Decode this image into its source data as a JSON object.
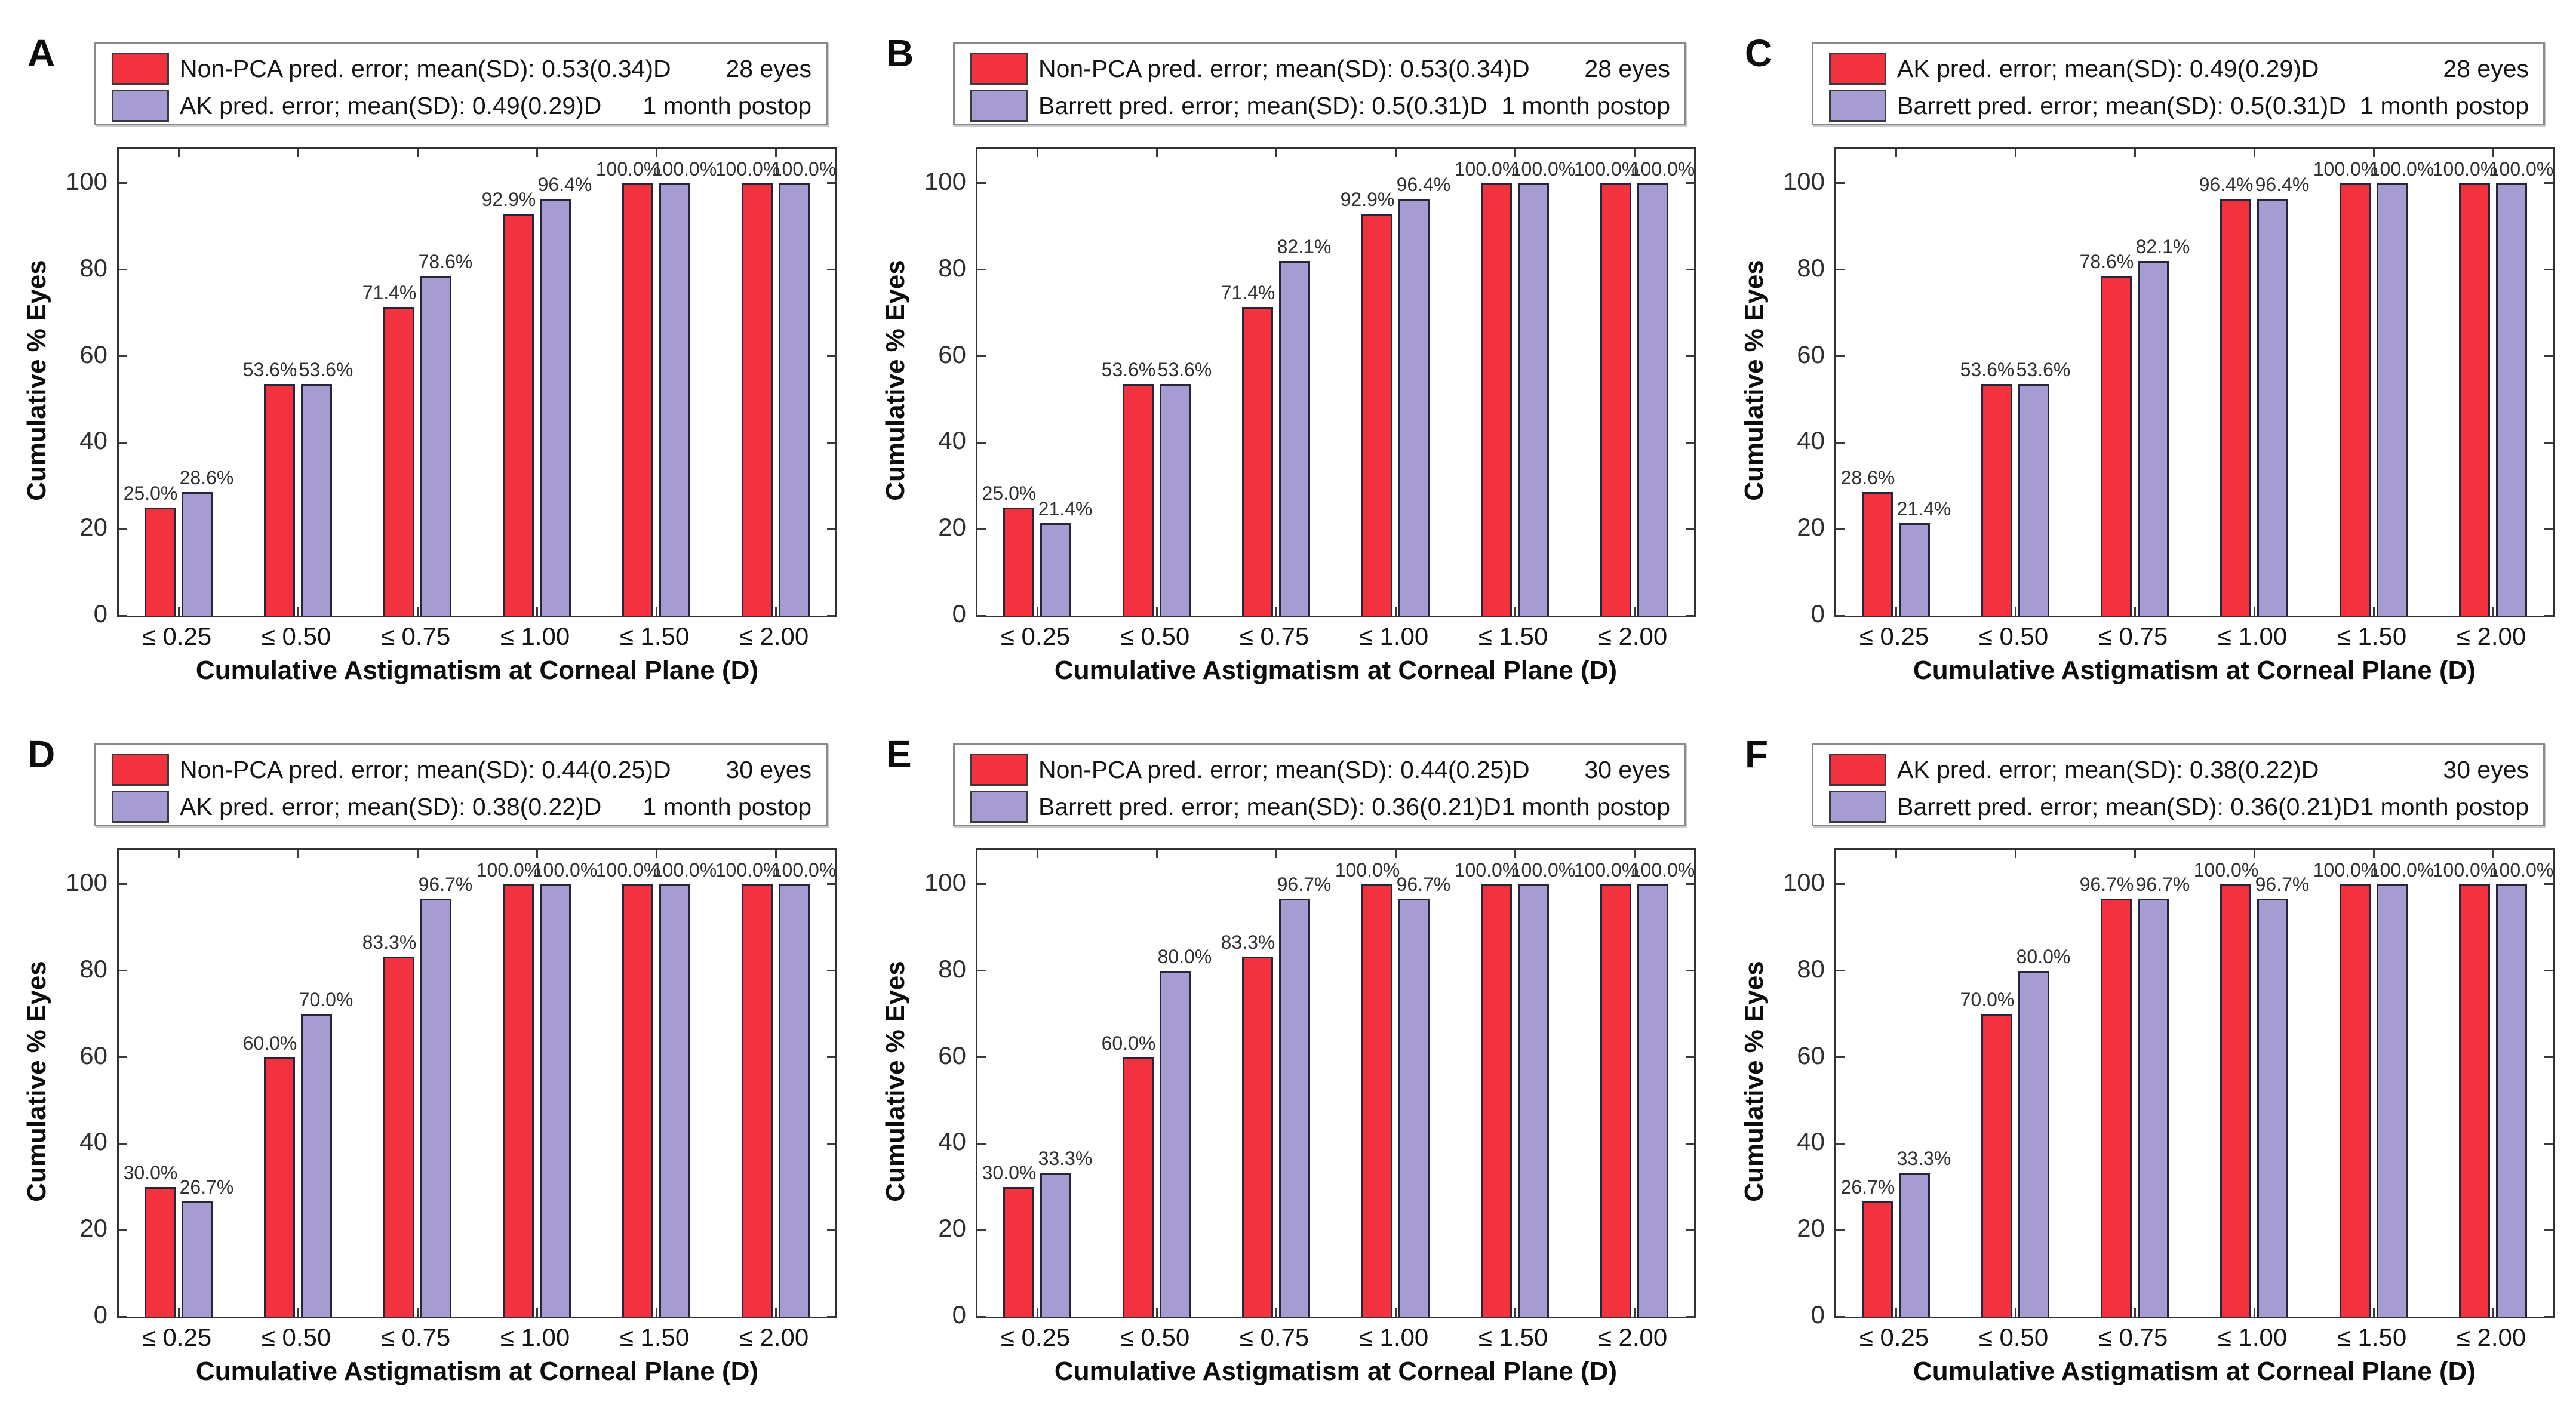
{
  "chart_data": [
    {
      "type": "bar",
      "panel": "A",
      "eyes": "28 eyes",
      "postop": "1 month postop",
      "xlabel": "Cumulative Astigmatism at Corneal Plane (D)",
      "ylabel": "Cumulative % Eyes",
      "categories": [
        "≤ 0.25",
        "≤ 0.50",
        "≤ 0.75",
        "≤ 1.00",
        "≤ 1.50",
        "≤ 2.00"
      ],
      "yticks": [
        0,
        20,
        40,
        60,
        80,
        100
      ],
      "ylim": [
        0,
        108
      ],
      "legend_position": "top",
      "grid": false,
      "series": [
        {
          "name": "Non-PCA pred. error; mean(SD): 0.53(0.34)D",
          "color": "#F2323E",
          "values": [
            25.0,
            53.6,
            71.4,
            92.9,
            100.0,
            100.0
          ],
          "labels": [
            "25.0%",
            "53.6%",
            "71.4%",
            "92.9%",
            "100.0%",
            "100.0%"
          ]
        },
        {
          "name": "AK pred. error; mean(SD): 0.49(0.29)D",
          "color": "#A79CD2",
          "values": [
            28.6,
            53.6,
            78.6,
            96.4,
            100.0,
            100.0
          ],
          "labels": [
            "28.6%",
            "53.6%",
            "78.6%",
            "96.4%",
            "100.0%",
            "100.0%"
          ]
        }
      ]
    },
    {
      "type": "bar",
      "panel": "B",
      "eyes": "28 eyes",
      "postop": "1 month postop",
      "xlabel": "Cumulative Astigmatism at Corneal Plane (D)",
      "ylabel": "Cumulative % Eyes",
      "categories": [
        "≤ 0.25",
        "≤ 0.50",
        "≤ 0.75",
        "≤ 1.00",
        "≤ 1.50",
        "≤ 2.00"
      ],
      "yticks": [
        0,
        20,
        40,
        60,
        80,
        100
      ],
      "ylim": [
        0,
        108
      ],
      "legend_position": "top",
      "grid": false,
      "series": [
        {
          "name": "Non-PCA pred. error; mean(SD): 0.53(0.34)D",
          "color": "#F2323E",
          "values": [
            25.0,
            53.6,
            71.4,
            92.9,
            100.0,
            100.0
          ],
          "labels": [
            "25.0%",
            "53.6%",
            "71.4%",
            "92.9%",
            "100.0%",
            "100.0%"
          ]
        },
        {
          "name": "Barrett pred. error; mean(SD): 0.5(0.31)D",
          "color": "#A79CD2",
          "values": [
            21.4,
            53.6,
            82.1,
            96.4,
            100.0,
            100.0
          ],
          "labels": [
            "21.4%",
            "53.6%",
            "82.1%",
            "96.4%",
            "100.0%",
            "100.0%"
          ]
        }
      ]
    },
    {
      "type": "bar",
      "panel": "C",
      "eyes": "28 eyes",
      "postop": "1 month postop",
      "xlabel": "Cumulative Astigmatism at Corneal Plane (D)",
      "ylabel": "Cumulative % Eyes",
      "categories": [
        "≤ 0.25",
        "≤ 0.50",
        "≤ 0.75",
        "≤ 1.00",
        "≤ 1.50",
        "≤ 2.00"
      ],
      "yticks": [
        0,
        20,
        40,
        60,
        80,
        100
      ],
      "ylim": [
        0,
        108
      ],
      "legend_position": "top",
      "grid": false,
      "series": [
        {
          "name": "AK pred. error; mean(SD): 0.49(0.29)D",
          "color": "#F2323E",
          "values": [
            28.6,
            53.6,
            78.6,
            96.4,
            100.0,
            100.0
          ],
          "labels": [
            "28.6%",
            "53.6%",
            "78.6%",
            "96.4%",
            "100.0%",
            "100.0%"
          ]
        },
        {
          "name": "Barrett pred. error; mean(SD): 0.5(0.31)D",
          "color": "#A79CD2",
          "values": [
            21.4,
            53.6,
            82.1,
            96.4,
            100.0,
            100.0
          ],
          "labels": [
            "21.4%",
            "53.6%",
            "82.1%",
            "96.4%",
            "100.0%",
            "100.0%"
          ]
        }
      ]
    },
    {
      "type": "bar",
      "panel": "D",
      "eyes": "30 eyes",
      "postop": "1 month postop",
      "xlabel": "Cumulative Astigmatism at Corneal Plane (D)",
      "ylabel": "Cumulative % Eyes",
      "categories": [
        "≤ 0.25",
        "≤ 0.50",
        "≤ 0.75",
        "≤ 1.00",
        "≤ 1.50",
        "≤ 2.00"
      ],
      "yticks": [
        0,
        20,
        40,
        60,
        80,
        100
      ],
      "ylim": [
        0,
        108
      ],
      "legend_position": "top",
      "grid": false,
      "series": [
        {
          "name": "Non-PCA pred. error; mean(SD): 0.44(0.25)D",
          "color": "#F2323E",
          "values": [
            30.0,
            60.0,
            83.3,
            100.0,
            100.0,
            100.0
          ],
          "labels": [
            "30.0%",
            "60.0%",
            "83.3%",
            "100.0%",
            "100.0%",
            "100.0%"
          ]
        },
        {
          "name": "AK pred. error; mean(SD): 0.38(0.22)D",
          "color": "#A79CD2",
          "values": [
            26.7,
            70.0,
            96.7,
            100.0,
            100.0,
            100.0
          ],
          "labels": [
            "26.7%",
            "70.0%",
            "96.7%",
            "100.0%",
            "100.0%",
            "100.0%"
          ]
        }
      ]
    },
    {
      "type": "bar",
      "panel": "E",
      "eyes": "30 eyes",
      "postop": "1 month postop",
      "xlabel": "Cumulative Astigmatism at Corneal Plane (D)",
      "ylabel": "Cumulative % Eyes",
      "categories": [
        "≤ 0.25",
        "≤ 0.50",
        "≤ 0.75",
        "≤ 1.00",
        "≤ 1.50",
        "≤ 2.00"
      ],
      "yticks": [
        0,
        20,
        40,
        60,
        80,
        100
      ],
      "ylim": [
        0,
        108
      ],
      "legend_position": "top",
      "grid": false,
      "series": [
        {
          "name": "Non-PCA pred. error; mean(SD): 0.44(0.25)D",
          "color": "#F2323E",
          "values": [
            30.0,
            60.0,
            83.3,
            100.0,
            100.0,
            100.0
          ],
          "labels": [
            "30.0%",
            "60.0%",
            "83.3%",
            "100.0%",
            "100.0%",
            "100.0%"
          ]
        },
        {
          "name": "Barrett pred. error; mean(SD): 0.36(0.21)D",
          "color": "#A79CD2",
          "values": [
            33.3,
            80.0,
            96.7,
            96.7,
            100.0,
            100.0
          ],
          "labels": [
            "33.3%",
            "80.0%",
            "96.7%",
            "96.7%",
            "100.0%",
            "100.0%"
          ]
        }
      ]
    },
    {
      "type": "bar",
      "panel": "F",
      "eyes": "30 eyes",
      "postop": "1 month postop",
      "xlabel": "Cumulative Astigmatism at Corneal Plane (D)",
      "ylabel": "Cumulative % Eyes",
      "categories": [
        "≤ 0.25",
        "≤ 0.50",
        "≤ 0.75",
        "≤ 1.00",
        "≤ 1.50",
        "≤ 2.00"
      ],
      "yticks": [
        0,
        20,
        40,
        60,
        80,
        100
      ],
      "ylim": [
        0,
        108
      ],
      "legend_position": "top",
      "grid": false,
      "series": [
        {
          "name": "AK pred. error; mean(SD): 0.38(0.22)D",
          "color": "#F2323E",
          "values": [
            26.7,
            70.0,
            96.7,
            100.0,
            100.0,
            100.0
          ],
          "labels": [
            "26.7%",
            "70.0%",
            "96.7%",
            "100.0%",
            "100.0%",
            "100.0%"
          ]
        },
        {
          "name": "Barrett pred. error; mean(SD): 0.36(0.21)D",
          "color": "#A79CD2",
          "values": [
            33.3,
            80.0,
            96.7,
            96.7,
            100.0,
            100.0
          ],
          "labels": [
            "33.3%",
            "80.0%",
            "96.7%",
            "96.7%",
            "100.0%",
            "100.0%"
          ]
        }
      ]
    }
  ]
}
